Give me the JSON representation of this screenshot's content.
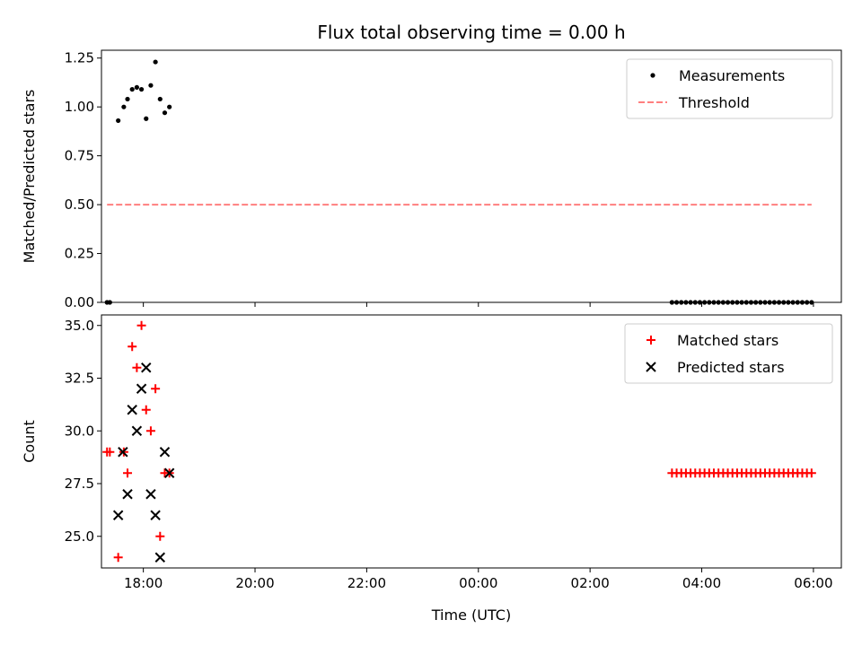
{
  "chart_data": [
    {
      "type": "scatter",
      "title": "Flux total observing time = 0.00 h",
      "ylabel": "Matched/Predicted stars",
      "xlabel": "",
      "xlim": [
        "17:15",
        "30:30"
      ],
      "ylim": [
        0,
        1.29
      ],
      "yticks": [
        "0.00",
        "0.25",
        "0.50",
        "0.75",
        "1.00",
        "1.25"
      ],
      "legend": "top-right",
      "series": [
        {
          "name": "Measurements",
          "marker": "dot",
          "color": "#000000",
          "points": [
            [
              "17:21",
              0.0
            ],
            [
              "17:24",
              0.0
            ],
            [
              "17:33",
              0.93
            ],
            [
              "17:39",
              1.0
            ],
            [
              "17:43",
              1.04
            ],
            [
              "17:48",
              1.09
            ],
            [
              "17:53",
              1.1
            ],
            [
              "17:58",
              1.09
            ],
            [
              "18:03",
              0.94
            ],
            [
              "18:08",
              1.11
            ],
            [
              "18:13",
              1.23
            ],
            [
              "18:18",
              1.04
            ],
            [
              "18:23",
              0.97
            ],
            [
              "18:28",
              1.0
            ],
            [
              "27:28",
              0.0
            ],
            [
              "27:33",
              0.0
            ],
            [
              "27:38",
              0.0
            ],
            [
              "27:43",
              0.0
            ],
            [
              "27:48",
              0.0
            ],
            [
              "27:53",
              0.0
            ],
            [
              "27:58",
              0.0
            ],
            [
              "28:03",
              0.0
            ],
            [
              "28:08",
              0.0
            ],
            [
              "28:13",
              0.0
            ],
            [
              "28:18",
              0.0
            ],
            [
              "28:23",
              0.0
            ],
            [
              "28:28",
              0.0
            ],
            [
              "28:33",
              0.0
            ],
            [
              "28:38",
              0.0
            ],
            [
              "28:43",
              0.0
            ],
            [
              "28:48",
              0.0
            ],
            [
              "28:53",
              0.0
            ],
            [
              "28:58",
              0.0
            ],
            [
              "29:03",
              0.0
            ],
            [
              "29:08",
              0.0
            ],
            [
              "29:13",
              0.0
            ],
            [
              "29:18",
              0.0
            ],
            [
              "29:23",
              0.0
            ],
            [
              "29:28",
              0.0
            ],
            [
              "29:33",
              0.0
            ],
            [
              "29:38",
              0.0
            ],
            [
              "29:43",
              0.0
            ],
            [
              "29:48",
              0.0
            ],
            [
              "29:53",
              0.0
            ],
            [
              "29:58",
              0.0
            ]
          ]
        },
        {
          "name": "Threshold",
          "marker": "dashed-line",
          "color": "#ff7f7f",
          "points": [
            [
              "17:21",
              0.5
            ],
            [
              "29:58",
              0.5
            ]
          ]
        }
      ]
    },
    {
      "type": "scatter",
      "title": "",
      "ylabel": "Count",
      "xlabel": "Time (UTC)",
      "xlim": [
        "17:15",
        "30:30"
      ],
      "ylim": [
        23.5,
        35.5
      ],
      "yticks": [
        "25.0",
        "27.5",
        "30.0",
        "32.5",
        "35.0"
      ],
      "xticks": [
        "18:00",
        "20:00",
        "22:00",
        "00:00",
        "02:00",
        "04:00",
        "06:00"
      ],
      "legend": "top-right",
      "series": [
        {
          "name": "Matched stars",
          "marker": "plus",
          "color": "#ff0000",
          "points": [
            [
              "17:21",
              29
            ],
            [
              "17:24",
              29
            ],
            [
              "17:33",
              24
            ],
            [
              "17:39",
              29
            ],
            [
              "17:43",
              28
            ],
            [
              "17:48",
              34
            ],
            [
              "17:53",
              33
            ],
            [
              "17:58",
              35
            ],
            [
              "18:03",
              31
            ],
            [
              "18:08",
              30
            ],
            [
              "18:13",
              32
            ],
            [
              "18:18",
              25
            ],
            [
              "18:23",
              28
            ],
            [
              "18:28",
              28
            ],
            [
              "27:28",
              28
            ],
            [
              "27:33",
              28
            ],
            [
              "27:38",
              28
            ],
            [
              "27:43",
              28
            ],
            [
              "27:48",
              28
            ],
            [
              "27:53",
              28
            ],
            [
              "27:58",
              28
            ],
            [
              "28:03",
              28
            ],
            [
              "28:08",
              28
            ],
            [
              "28:13",
              28
            ],
            [
              "28:18",
              28
            ],
            [
              "28:23",
              28
            ],
            [
              "28:28",
              28
            ],
            [
              "28:33",
              28
            ],
            [
              "28:38",
              28
            ],
            [
              "28:43",
              28
            ],
            [
              "28:48",
              28
            ],
            [
              "28:53",
              28
            ],
            [
              "28:58",
              28
            ],
            [
              "29:03",
              28
            ],
            [
              "29:08",
              28
            ],
            [
              "29:13",
              28
            ],
            [
              "29:18",
              28
            ],
            [
              "29:23",
              28
            ],
            [
              "29:28",
              28
            ],
            [
              "29:33",
              28
            ],
            [
              "29:38",
              28
            ],
            [
              "29:43",
              28
            ],
            [
              "29:48",
              28
            ],
            [
              "29:53",
              28
            ],
            [
              "29:58",
              28
            ]
          ]
        },
        {
          "name": "Predicted stars",
          "marker": "x",
          "color": "#000000",
          "points": [
            [
              "17:33",
              26
            ],
            [
              "17:38",
              29
            ],
            [
              "17:43",
              27
            ],
            [
              "17:48",
              31
            ],
            [
              "17:53",
              30
            ],
            [
              "17:58",
              32
            ],
            [
              "18:03",
              33
            ],
            [
              "18:08",
              27
            ],
            [
              "18:13",
              26
            ],
            [
              "18:18",
              24
            ],
            [
              "18:23",
              29
            ],
            [
              "18:28",
              28
            ]
          ]
        }
      ]
    }
  ]
}
